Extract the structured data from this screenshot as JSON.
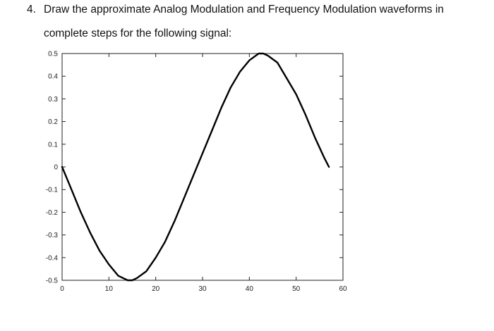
{
  "question": {
    "number": "4.",
    "line1": "Draw the approximate Analog Modulation and Frequency Modulation waveforms in",
    "line2": "complete steps for the following signal:"
  },
  "chart_data": {
    "type": "line",
    "title": "",
    "xlabel": "",
    "ylabel": "",
    "xlim": [
      0,
      60
    ],
    "ylim": [
      -0.5,
      0.5
    ],
    "x_ticks": [
      0,
      10,
      20,
      30,
      40,
      50,
      60
    ],
    "y_ticks": [
      0.5,
      0.4,
      0.3,
      0.2,
      0.1,
      0,
      -0.1,
      -0.2,
      -0.3,
      -0.4,
      -0.5
    ],
    "x_tick_labels": [
      "0",
      "10",
      "20",
      "30",
      "40",
      "50",
      "60"
    ],
    "y_tick_labels": [
      "0.5",
      "0.4",
      "0.3",
      "0.2",
      "0.1",
      "0",
      "-0.1",
      "-0.2",
      "-0.3",
      "-0.4",
      "-0.5"
    ],
    "grid": false,
    "series": [
      {
        "color": "#000000",
        "x": [
          0,
          2,
          4,
          6,
          8,
          10,
          12,
          14,
          15,
          16,
          18,
          20,
          22,
          24,
          26,
          28,
          30,
          32,
          34,
          36,
          38,
          40,
          42,
          43,
          44,
          46,
          48,
          50,
          52,
          54,
          56,
          57
        ],
        "y": [
          0.0,
          -0.1,
          -0.2,
          -0.29,
          -0.37,
          -0.43,
          -0.48,
          -0.5,
          -0.5,
          -0.49,
          -0.46,
          -0.4,
          -0.33,
          -0.24,
          -0.14,
          -0.04,
          0.06,
          0.16,
          0.26,
          0.35,
          0.42,
          0.47,
          0.5,
          0.5,
          0.49,
          0.46,
          0.39,
          0.32,
          0.23,
          0.13,
          0.04,
          0.0
        ]
      }
    ]
  }
}
